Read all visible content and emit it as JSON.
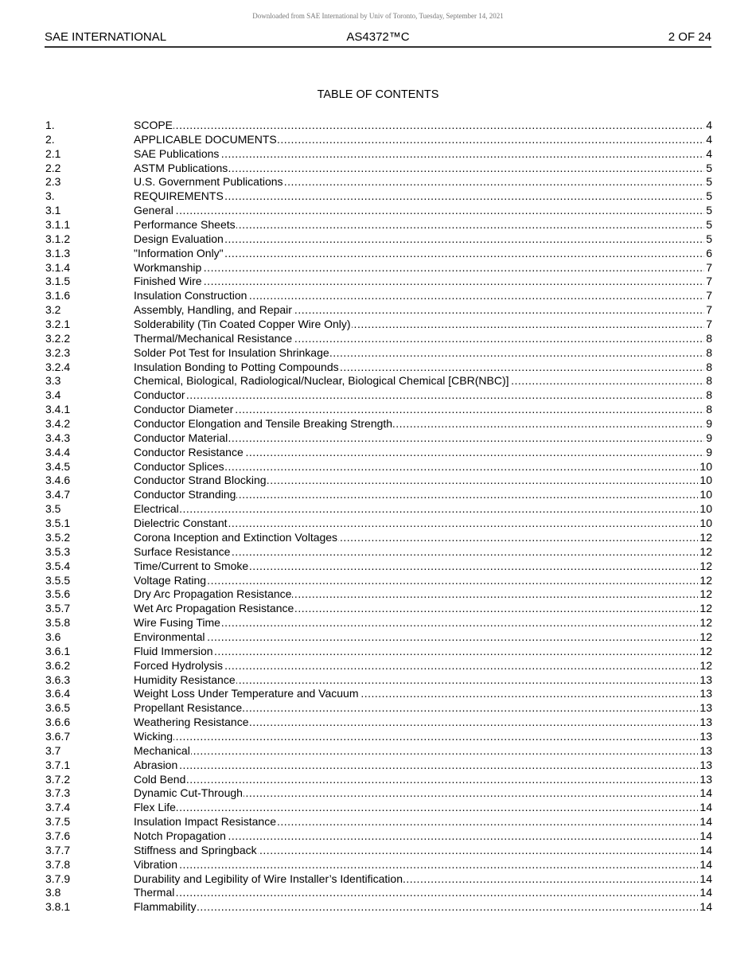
{
  "watermark": "Downloaded from SAE International by Univ of Toronto, Tuesday, September 14, 2021",
  "header": {
    "left": "SAE INTERNATIONAL",
    "center": "AS4372™C",
    "right": "2 OF 24"
  },
  "toc_title": "TABLE OF CONTENTS",
  "entries": [
    {
      "num": "1.",
      "title": "SCOPE",
      "page": "4"
    },
    {
      "num": "2.",
      "title": "APPLICABLE DOCUMENTS",
      "page": "4"
    },
    {
      "num": "2.1",
      "title": "SAE Publications",
      "page": "4"
    },
    {
      "num": "2.2",
      "title": "ASTM Publications",
      "page": "5"
    },
    {
      "num": "2.3",
      "title": "U.S. Government Publications",
      "page": "5"
    },
    {
      "num": "3.",
      "title": "REQUIREMENTS",
      "page": "5"
    },
    {
      "num": "3.1",
      "title": "General",
      "page": "5"
    },
    {
      "num": "3.1.1",
      "title": "Performance Sheets",
      "page": "5"
    },
    {
      "num": "3.1.2",
      "title": "Design Evaluation",
      "page": "5"
    },
    {
      "num": "3.1.3",
      "title": "\"Information Only\"",
      "page": "6"
    },
    {
      "num": "3.1.4",
      "title": "Workmanship",
      "page": "7"
    },
    {
      "num": "3.1.5",
      "title": "Finished Wire",
      "page": "7"
    },
    {
      "num": "3.1.6",
      "title": "Insulation Construction",
      "page": "7"
    },
    {
      "num": "3.2",
      "title": "Assembly, Handling, and Repair",
      "page": "7"
    },
    {
      "num": "3.2.1",
      "title": "Solderability (Tin Coated Copper Wire Only)",
      "page": "7"
    },
    {
      "num": "3.2.2",
      "title": "Thermal/Mechanical Resistance",
      "page": "8"
    },
    {
      "num": "3.2.3",
      "title": "Solder Pot Test for Insulation Shrinkage",
      "page": "8"
    },
    {
      "num": "3.2.4",
      "title": "Insulation Bonding to Potting Compounds",
      "page": "8"
    },
    {
      "num": "3.3",
      "title": "Chemical, Biological, Radiological/Nuclear, Biological Chemical [CBR(NBC)]",
      "page": "8"
    },
    {
      "num": "3.4",
      "title": "Conductor",
      "page": "8"
    },
    {
      "num": "3.4.1",
      "title": "Conductor Diameter",
      "page": "8"
    },
    {
      "num": "3.4.2",
      "title": "Conductor Elongation and Tensile Breaking Strength",
      "page": "9"
    },
    {
      "num": "3.4.3",
      "title": "Conductor Material",
      "page": "9"
    },
    {
      "num": "3.4.4",
      "title": "Conductor Resistance",
      "page": "9"
    },
    {
      "num": "3.4.5",
      "title": "Conductor Splices",
      "page": "10"
    },
    {
      "num": "3.4.6",
      "title": "Conductor Strand Blocking",
      "page": "10"
    },
    {
      "num": "3.4.7",
      "title": "Conductor Stranding",
      "page": "10"
    },
    {
      "num": "3.5",
      "title": "Electrical",
      "page": "10"
    },
    {
      "num": "3.5.1",
      "title": "Dielectric Constant",
      "page": "10"
    },
    {
      "num": "3.5.2",
      "title": "Corona Inception and Extinction Voltages",
      "page": "12"
    },
    {
      "num": "3.5.3",
      "title": "Surface Resistance",
      "page": "12"
    },
    {
      "num": "3.5.4",
      "title": "Time/Current to Smoke",
      "page": "12"
    },
    {
      "num": "3.5.5",
      "title": "Voltage Rating",
      "page": "12"
    },
    {
      "num": "3.5.6",
      "title": "Dry Arc Propagation Resistance",
      "page": "12"
    },
    {
      "num": "3.5.7",
      "title": "Wet Arc Propagation Resistance",
      "page": "12"
    },
    {
      "num": "3.5.8",
      "title": "Wire Fusing Time",
      "page": "12"
    },
    {
      "num": "3.6",
      "title": "Environmental",
      "page": "12"
    },
    {
      "num": "3.6.1",
      "title": "Fluid Immersion",
      "page": "12"
    },
    {
      "num": "3.6.2",
      "title": "Forced Hydrolysis",
      "page": "12"
    },
    {
      "num": "3.6.3",
      "title": "Humidity Resistance",
      "page": "13"
    },
    {
      "num": "3.6.4",
      "title": "Weight Loss Under Temperature and Vacuum",
      "page": "13"
    },
    {
      "num": "3.6.5",
      "title": "Propellant Resistance",
      "page": "13"
    },
    {
      "num": "3.6.6",
      "title": "Weathering Resistance",
      "page": "13"
    },
    {
      "num": "3.6.7",
      "title": "Wicking",
      "page": "13"
    },
    {
      "num": "3.7",
      "title": "Mechanical",
      "page": "13"
    },
    {
      "num": "3.7.1",
      "title": "Abrasion",
      "page": "13"
    },
    {
      "num": "3.7.2",
      "title": "Cold Bend",
      "page": "13"
    },
    {
      "num": "3.7.3",
      "title": "Dynamic Cut-Through",
      "page": "14"
    },
    {
      "num": "3.7.4",
      "title": "Flex Life",
      "page": "14"
    },
    {
      "num": "3.7.5",
      "title": "Insulation Impact Resistance",
      "page": "14"
    },
    {
      "num": "3.7.6",
      "title": "Notch Propagation",
      "page": "14"
    },
    {
      "num": "3.7.7",
      "title": "Stiffness and Springback",
      "page": "14"
    },
    {
      "num": "3.7.8",
      "title": "Vibration",
      "page": "14"
    },
    {
      "num": "3.7.9",
      "title": "Durability and Legibility of Wire Installer’s Identification",
      "page": "14"
    },
    {
      "num": "3.8",
      "title": "Thermal",
      "page": "14"
    },
    {
      "num": "3.8.1",
      "title": "Flammability",
      "page": "14"
    }
  ]
}
